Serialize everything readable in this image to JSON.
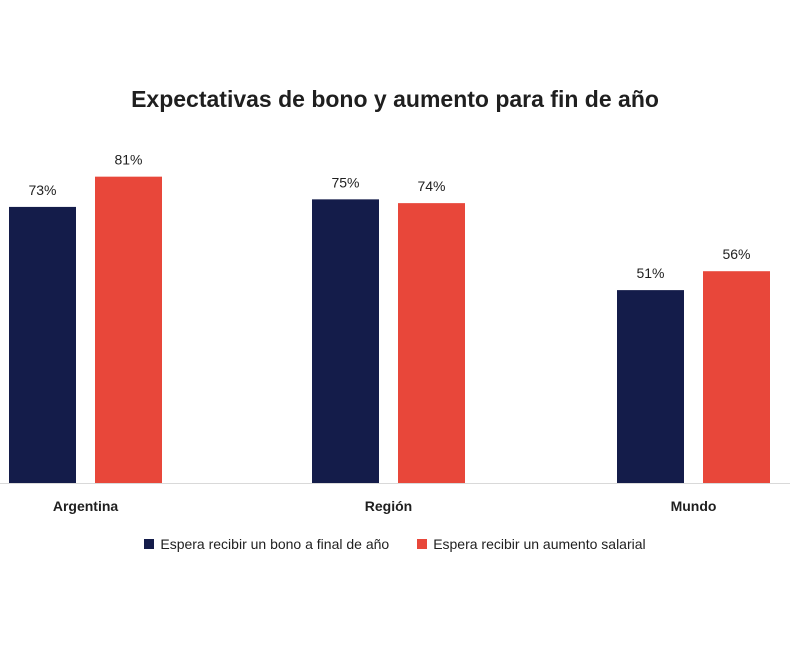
{
  "chart_data": {
    "type": "bar",
    "title": "Expectativas de bono y aumento para fin de año",
    "categories": [
      "Argentina",
      "Región",
      "Mundo"
    ],
    "series": [
      {
        "name": "Espera recibir un bono a final de año",
        "values": [
          73,
          75,
          51
        ],
        "labels": [
          "73%",
          "75%",
          "51%"
        ],
        "color": "#141c4a"
      },
      {
        "name": "Espera recibir un aumento salarial",
        "values": [
          81,
          74,
          56
        ],
        "labels": [
          "81%",
          "74%",
          "56%"
        ],
        "color": "#e8473a"
      }
    ],
    "ylim": [
      0,
      100
    ],
    "grid": false,
    "legend_position": "bottom"
  }
}
